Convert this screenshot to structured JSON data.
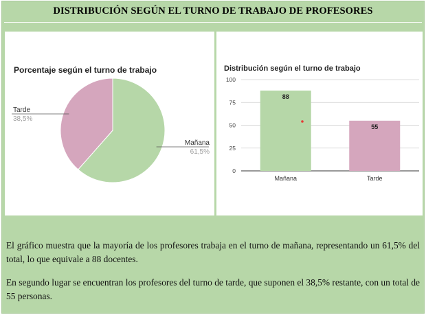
{
  "title": "DISTRIBUCIÓN SEGÚN EL TURNO DE TRABAJO DE PROFESORES",
  "chart_data": [
    {
      "type": "pie",
      "title": "Porcentaje según el turno de trabajo",
      "categories": [
        "Mañana",
        "Tarde"
      ],
      "values": [
        61.5,
        38.5
      ],
      "value_labels": [
        "61,5%",
        "38,5%"
      ],
      "colors": [
        "#b6d7a8",
        "#d5a6bd"
      ]
    },
    {
      "type": "bar",
      "title": "Distribución según el turno de trabajo",
      "categories": [
        "Mañana",
        "Tarde"
      ],
      "values": [
        88,
        55
      ],
      "colors": [
        "#b6d7a8",
        "#d5a6bd"
      ],
      "ylim": [
        0,
        100
      ],
      "yticks": [
        0,
        25,
        50,
        75,
        100
      ],
      "grid": true
    }
  ],
  "paragraphs": [
    "El gráfico muestra que la mayoría de los profesores trabaja en el turno de mañana, representando un 61,5% del total, lo que equivale a 88 docentes.",
    "En segundo lugar se encuentran los profesores del turno de tarde, que suponen el 38,5% restante, con un total de 55 personas."
  ]
}
